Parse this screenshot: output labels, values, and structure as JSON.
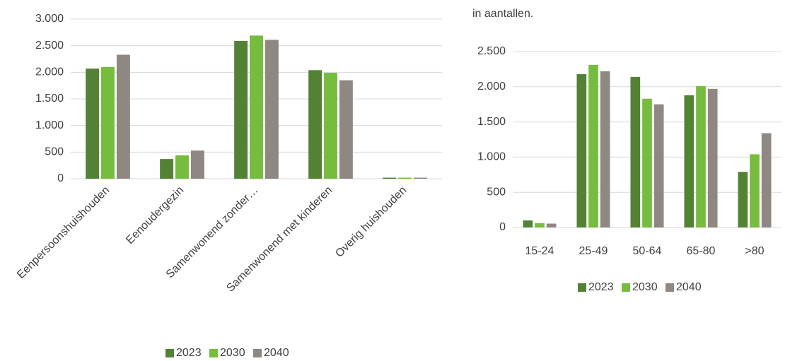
{
  "chart_data": [
    {
      "type": "bar",
      "categories": [
        "Eenpersoonshuishouden",
        "Eenoudergezin",
        "Samenwonend zonder…",
        "Samenwonend met kinderen",
        "Overig huishouden"
      ],
      "series": [
        {
          "name": "2023",
          "color": "#548235",
          "values": [
            2070,
            370,
            2590,
            2040,
            20
          ]
        },
        {
          "name": "2030",
          "color": "#76bc3e",
          "values": [
            2100,
            440,
            2690,
            1990,
            20
          ]
        },
        {
          "name": "2040",
          "color": "#8f8781",
          "values": [
            2330,
            530,
            2610,
            1850,
            20
          ]
        }
      ],
      "ylim": [
        0,
        3000
      ],
      "yticks": [
        0,
        500,
        {
          "value": 1000,
          "label": "1.000"
        },
        {
          "value": 1500,
          "label": "1.500"
        },
        {
          "value": 2000,
          "label": "2.000"
        },
        {
          "value": 2500,
          "label": "2.500"
        },
        {
          "value": 3000,
          "label": "3.000"
        }
      ],
      "grid": true,
      "rotate_labels": true,
      "legend": "bottom"
    },
    {
      "type": "bar",
      "title": "in aantallen.",
      "categories": [
        "15-24",
        "25-49",
        "50-64",
        "65-80",
        ">80"
      ],
      "series": [
        {
          "name": "2023",
          "color": "#548235",
          "values": [
            100,
            2180,
            2140,
            1880,
            790
          ]
        },
        {
          "name": "2030",
          "color": "#76bc3e",
          "values": [
            60,
            2310,
            1830,
            2010,
            1040
          ]
        },
        {
          "name": "2040",
          "color": "#8f8781",
          "values": [
            55,
            2220,
            1750,
            1970,
            1340
          ]
        }
      ],
      "ylim": [
        0,
        2500
      ],
      "yticks": [
        0,
        500,
        {
          "value": 1000,
          "label": "1.000"
        },
        {
          "value": 1500,
          "label": "1.500"
        },
        {
          "value": 2000,
          "label": "2.000"
        },
        {
          "value": 2500,
          "label": "2.500"
        }
      ],
      "grid": true,
      "rotate_labels": false,
      "legend": "bottom"
    }
  ]
}
